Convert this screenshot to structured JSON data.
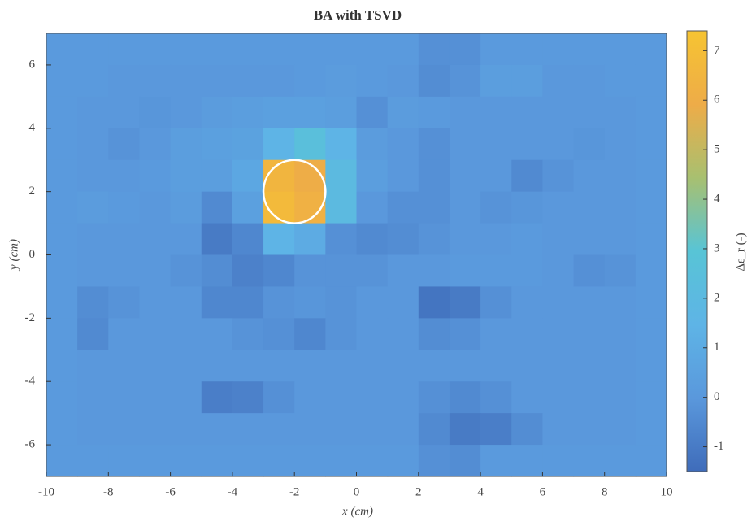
{
  "chart_data": {
    "type": "heatmap",
    "title": "BA with TSVD",
    "xlabel": "x (cm)",
    "ylabel": "y (cm)",
    "colorbar_label": "Δε_r (-)",
    "xlim": [
      -10,
      10
    ],
    "ylim": [
      -7,
      7
    ],
    "xticks": [
      -10,
      -8,
      -6,
      -4,
      -2,
      0,
      2,
      4,
      6,
      8,
      10
    ],
    "yticks": [
      -6,
      -4,
      -2,
      0,
      2,
      4,
      6
    ],
    "clim": [
      -1.5,
      7.4
    ],
    "cticks": [
      -1,
      0,
      1,
      2,
      3,
      4,
      5,
      6,
      7
    ],
    "colormap": [
      "#3f6cba",
      "#5a98dc",
      "#5eb4e6",
      "#58c4d6",
      "#a8c070",
      "#eeac48",
      "#f6c432"
    ],
    "circle": {
      "x": -2,
      "y": 2,
      "r": 1,
      "color": "#ffffff"
    },
    "z": [
      [
        0.1,
        0.1,
        0.1,
        0.1,
        0.1,
        0.1,
        0.1,
        0.1,
        0.1,
        0.1,
        0.1,
        0.1,
        -0.3,
        -0.3,
        0.1,
        0.1,
        0.1,
        0.1,
        0.1,
        0.1
      ],
      [
        0.1,
        0.1,
        0.0,
        0.0,
        0.0,
        0.0,
        0.0,
        0.0,
        0.1,
        0.2,
        0.1,
        0.0,
        -0.4,
        -0.2,
        0.3,
        0.3,
        0.0,
        0.0,
        0.1,
        0.1
      ],
      [
        0.1,
        0.0,
        0.0,
        -0.1,
        0.0,
        0.2,
        0.3,
        0.4,
        0.4,
        0.3,
        -0.3,
        0.2,
        0.1,
        0.0,
        0.0,
        0.0,
        0.0,
        0.0,
        0.0,
        0.1
      ],
      [
        0.1,
        0.0,
        -0.2,
        0.0,
        0.3,
        0.4,
        0.5,
        1.5,
        2.5,
        1.5,
        0.2,
        0.0,
        -0.3,
        0.0,
        0.0,
        0.0,
        0.0,
        -0.1,
        0.0,
        0.1
      ],
      [
        0.1,
        0.0,
        0.0,
        0.1,
        0.3,
        0.3,
        0.8,
        6.5,
        6.0,
        2.0,
        0.3,
        0.0,
        -0.3,
        0.0,
        0.0,
        -0.5,
        -0.2,
        0.0,
        0.0,
        0.1
      ],
      [
        0.1,
        0.2,
        0.1,
        0.0,
        0.2,
        -0.5,
        0.4,
        6.8,
        6.2,
        2.0,
        0.0,
        -0.3,
        -0.3,
        0.0,
        -0.2,
        -0.1,
        0.0,
        0.0,
        0.0,
        0.1
      ],
      [
        0.1,
        0.0,
        0.0,
        0.0,
        0.0,
        -1.0,
        -0.6,
        1.5,
        1.0,
        -0.3,
        -0.5,
        -0.4,
        -0.2,
        0.0,
        0.0,
        0.1,
        0.0,
        0.0,
        0.0,
        0.1
      ],
      [
        0.1,
        0.0,
        0.0,
        0.0,
        -0.2,
        -0.4,
        -0.8,
        -0.6,
        -0.2,
        -0.2,
        -0.2,
        0.0,
        0.0,
        0.1,
        0.1,
        0.1,
        0.0,
        -0.3,
        -0.2,
        0.1
      ],
      [
        0.1,
        -0.4,
        -0.2,
        0.0,
        0.0,
        -0.6,
        -0.6,
        -0.2,
        -0.1,
        -0.2,
        0.0,
        0.0,
        -1.2,
        -1.0,
        -0.3,
        0.0,
        0.0,
        0.0,
        0.0,
        0.1
      ],
      [
        0.1,
        -0.5,
        0.0,
        0.0,
        0.0,
        0.0,
        -0.2,
        -0.3,
        -0.6,
        -0.2,
        0.0,
        0.0,
        -0.4,
        -0.3,
        0.0,
        0.0,
        0.0,
        0.0,
        0.0,
        0.1
      ],
      [
        0.1,
        0.0,
        0.0,
        0.0,
        0.0,
        0.0,
        0.0,
        0.0,
        0.0,
        0.0,
        0.0,
        0.0,
        0.0,
        0.0,
        0.0,
        0.0,
        0.0,
        0.0,
        0.0,
        0.1
      ],
      [
        0.1,
        0.0,
        0.0,
        0.0,
        0.0,
        -0.9,
        -0.8,
        -0.3,
        0.0,
        0.0,
        0.0,
        0.0,
        -0.3,
        -0.5,
        -0.3,
        0.0,
        0.0,
        0.0,
        0.0,
        0.1
      ],
      [
        0.1,
        0.0,
        0.0,
        0.0,
        0.0,
        0.0,
        0.0,
        0.0,
        0.0,
        0.0,
        0.0,
        0.0,
        -0.5,
        -1.0,
        -0.9,
        -0.4,
        0.0,
        0.0,
        0.0,
        0.1
      ],
      [
        0.1,
        0.1,
        0.1,
        0.1,
        0.1,
        0.1,
        0.1,
        0.1,
        0.1,
        0.1,
        0.1,
        0.1,
        -0.3,
        -0.4,
        0.1,
        0.1,
        0.1,
        0.1,
        0.1,
        0.1
      ]
    ]
  }
}
